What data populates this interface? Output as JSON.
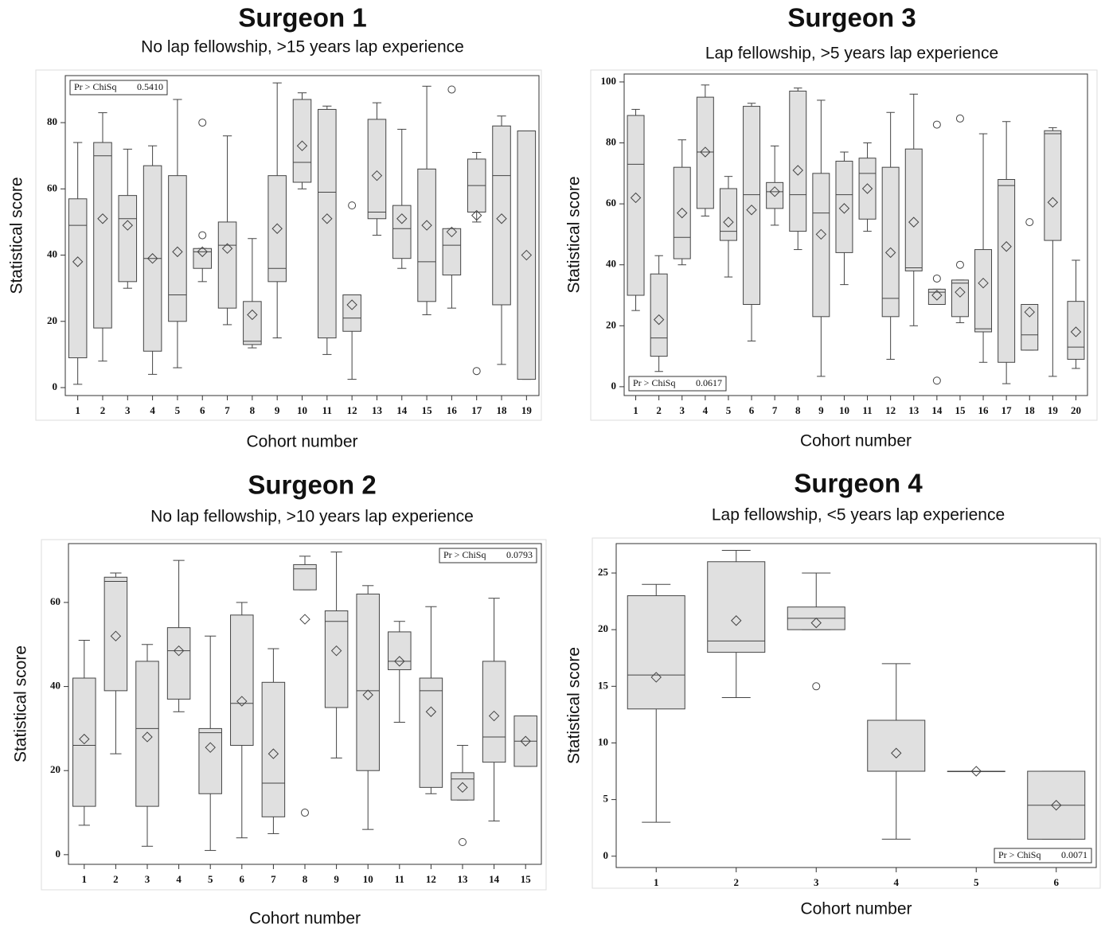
{
  "chart_data": [
    {
      "type": "box",
      "title": "Surgeon 1",
      "subtitle": "No lap fellowship, >15 years lap experience",
      "xlabel": "Cohort number",
      "ylabel": "Statistical score",
      "stat_label": "Pr > ChiSq",
      "p_value": "0.5410",
      "annotation_corner": "top-left",
      "color": "#e0e0e0",
      "ylim": [
        -2.4,
        94.2
      ],
      "yticks": [
        0,
        20,
        40,
        60,
        80
      ],
      "categories": [
        "1",
        "2",
        "3",
        "4",
        "5",
        "6",
        "7",
        "8",
        "9",
        "10",
        "11",
        "12",
        "13",
        "14",
        "15",
        "16",
        "17",
        "18",
        "19"
      ],
      "boxes": [
        {
          "min": 1,
          "q1": 9,
          "median": 49,
          "q3": 57,
          "max": 74,
          "mean": 38
        },
        {
          "min": 8,
          "q1": 18,
          "median": 70,
          "q3": 74,
          "max": 83,
          "mean": 51
        },
        {
          "min": 30,
          "q1": 32,
          "median": 51,
          "q3": 58,
          "max": 72,
          "mean": 49
        },
        {
          "min": 4,
          "q1": 11,
          "median": 39,
          "q3": 67,
          "max": 73,
          "mean": 39
        },
        {
          "min": 6,
          "q1": 20,
          "median": 28,
          "q3": 64,
          "max": 87,
          "mean": 41
        },
        {
          "min": 32,
          "q1": 36,
          "median": 41,
          "q3": 42,
          "max": 42,
          "mean": 41,
          "outliers": [
            80,
            46
          ]
        },
        {
          "min": 19,
          "q1": 24,
          "median": 43,
          "q3": 50,
          "max": 76,
          "mean": 42
        },
        {
          "min": 12,
          "q1": 13,
          "median": 14,
          "q3": 26,
          "max": 45,
          "mean": 22
        },
        {
          "min": 15,
          "q1": 32,
          "median": 36,
          "q3": 64,
          "max": 92,
          "mean": 48
        },
        {
          "min": 60,
          "q1": 62,
          "median": 68,
          "q3": 87,
          "max": 89,
          "mean": 73
        },
        {
          "min": 10,
          "q1": 15,
          "median": 59,
          "q3": 84,
          "max": 85,
          "mean": 51
        },
        {
          "min": 2.5,
          "q1": 17,
          "median": 21,
          "q3": 28,
          "max": 28,
          "mean": 25,
          "outliers": [
            55
          ]
        },
        {
          "min": 46,
          "q1": 51,
          "median": 53,
          "q3": 81,
          "max": 86,
          "mean": 64
        },
        {
          "min": 36,
          "q1": 39,
          "median": 48,
          "q3": 55,
          "max": 78,
          "mean": 51
        },
        {
          "min": 22,
          "q1": 26,
          "median": 38,
          "q3": 66,
          "max": 91,
          "mean": 49
        },
        {
          "min": 24,
          "q1": 34,
          "median": 43,
          "q3": 48,
          "max": 48,
          "mean": 47,
          "outliers": [
            90
          ]
        },
        {
          "min": 50,
          "q1": 53,
          "median": 61,
          "q3": 69,
          "max": 71,
          "mean": 52,
          "outliers": [
            5
          ]
        },
        {
          "min": 7,
          "q1": 25,
          "median": 64,
          "q3": 79,
          "max": 82,
          "mean": 51
        },
        {
          "min": 2.5,
          "q1": 2.5,
          "median": 77.5,
          "q3": 77.5,
          "max": 77.5,
          "mean": 40
        }
      ]
    },
    {
      "type": "box",
      "title": "Surgeon 3",
      "subtitle": "Lap fellowship, >5 years lap experience",
      "xlabel": "Cohort number",
      "ylabel": "Statistical score",
      "stat_label": "Pr > ChiSq",
      "p_value": "0.0617",
      "annotation_corner": "bottom-left",
      "color": "#e0e0e0",
      "ylim": [
        -2.9,
        102.6
      ],
      "yticks": [
        0,
        20,
        40,
        60,
        80,
        100
      ],
      "categories": [
        "1",
        "2",
        "3",
        "4",
        "5",
        "6",
        "7",
        "8",
        "9",
        "10",
        "11",
        "12",
        "13",
        "14",
        "15",
        "16",
        "17",
        "18",
        "19",
        "20"
      ],
      "boxes": [
        {
          "min": 25,
          "q1": 30,
          "median": 73,
          "q3": 89,
          "max": 91,
          "mean": 62
        },
        {
          "min": 5,
          "q1": 10,
          "median": 16,
          "q3": 37,
          "max": 43,
          "mean": 22
        },
        {
          "min": 40,
          "q1": 42,
          "median": 49,
          "q3": 72,
          "max": 81,
          "mean": 57
        },
        {
          "min": 56,
          "q1": 58.5,
          "median": 77,
          "q3": 95,
          "max": 99,
          "mean": 77
        },
        {
          "min": 36,
          "q1": 48,
          "median": 51,
          "q3": 65,
          "max": 69,
          "mean": 54
        },
        {
          "min": 15,
          "q1": 27,
          "median": 63,
          "q3": 92,
          "max": 93,
          "mean": 58
        },
        {
          "min": 53,
          "q1": 58.5,
          "median": 64,
          "q3": 67,
          "max": 79,
          "mean": 64
        },
        {
          "min": 45,
          "q1": 51,
          "median": 63,
          "q3": 97,
          "max": 98,
          "mean": 71
        },
        {
          "min": 3.4,
          "q1": 23,
          "median": 57,
          "q3": 70,
          "max": 94,
          "mean": 50
        },
        {
          "min": 33.5,
          "q1": 44,
          "median": 63,
          "q3": 74,
          "max": 77,
          "mean": 58.5
        },
        {
          "min": 51,
          "q1": 55,
          "median": 70,
          "q3": 75,
          "max": 80,
          "mean": 65
        },
        {
          "min": 9,
          "q1": 23,
          "median": 29,
          "q3": 72,
          "max": 90,
          "mean": 44
        },
        {
          "min": 20,
          "q1": 38,
          "median": 39,
          "q3": 78,
          "max": 96,
          "mean": 54
        },
        {
          "min": 27,
          "q1": 27,
          "median": 31,
          "q3": 32,
          "max": 32,
          "mean": 30,
          "outliers": [
            86,
            35.5,
            2
          ]
        },
        {
          "min": 21,
          "q1": 23,
          "median": 34,
          "q3": 35,
          "max": 35,
          "mean": 31,
          "outliers": [
            88,
            40
          ]
        },
        {
          "min": 8,
          "q1": 18,
          "median": 19,
          "q3": 45,
          "max": 83,
          "mean": 34
        },
        {
          "min": 1,
          "q1": 8,
          "median": 66,
          "q3": 68,
          "max": 87,
          "mean": 46
        },
        {
          "min": 12,
          "q1": 12,
          "median": 17,
          "q3": 27,
          "max": 27,
          "mean": 24.5,
          "outliers": [
            54
          ]
        },
        {
          "min": 3.4,
          "q1": 48,
          "median": 83,
          "q3": 84,
          "max": 85,
          "mean": 60.5
        },
        {
          "min": 6,
          "q1": 9,
          "median": 13,
          "q3": 28,
          "max": 41.5,
          "mean": 18
        }
      ]
    },
    {
      "type": "box",
      "title": "Surgeon 2",
      "subtitle": "No lap fellowship, >10 years lap experience",
      "xlabel": "Cohort number",
      "ylabel": "Statistical score",
      "stat_label": "Pr > ChiSq",
      "p_value": "0.0793",
      "annotation_corner": "top-right",
      "color": "#e0e0e0",
      "ylim": [
        -2.3,
        74
      ],
      "yticks": [
        0,
        20,
        40,
        60
      ],
      "categories": [
        "1",
        "2",
        "3",
        "4",
        "5",
        "6",
        "7",
        "8",
        "9",
        "10",
        "11",
        "12",
        "13",
        "14",
        "15"
      ],
      "boxes": [
        {
          "min": 7,
          "q1": 11.5,
          "median": 26,
          "q3": 42,
          "max": 51,
          "mean": 27.5
        },
        {
          "min": 24,
          "q1": 39,
          "median": 65,
          "q3": 66,
          "max": 67,
          "mean": 52
        },
        {
          "min": 2,
          "q1": 11.5,
          "median": 30,
          "q3": 46,
          "max": 50,
          "mean": 28
        },
        {
          "min": 34,
          "q1": 37,
          "median": 48.5,
          "q3": 54,
          "max": 70,
          "mean": 48.5
        },
        {
          "min": 1,
          "q1": 14.5,
          "median": 29,
          "q3": 30,
          "max": 52,
          "mean": 25.5
        },
        {
          "min": 4,
          "q1": 26,
          "median": 36,
          "q3": 57,
          "max": 60,
          "mean": 36.5
        },
        {
          "min": 5,
          "q1": 9,
          "median": 17,
          "q3": 41,
          "max": 49,
          "mean": 24
        },
        {
          "min": 63,
          "q1": 63,
          "median": 68,
          "q3": 69,
          "max": 71,
          "mean": 56,
          "outliers": [
            10
          ]
        },
        {
          "min": 23,
          "q1": 35,
          "median": 55.5,
          "q3": 58,
          "max": 72,
          "mean": 48.5
        },
        {
          "min": 6,
          "q1": 20,
          "median": 39,
          "q3": 62,
          "max": 64,
          "mean": 38
        },
        {
          "min": 31.5,
          "q1": 44,
          "median": 46,
          "q3": 53,
          "max": 55.5,
          "mean": 46
        },
        {
          "min": 14.5,
          "q1": 16,
          "median": 39,
          "q3": 42,
          "max": 59,
          "mean": 34
        },
        {
          "min": 13,
          "q1": 13,
          "median": 18,
          "q3": 19.5,
          "max": 26,
          "mean": 16,
          "outliers": [
            3
          ]
        },
        {
          "min": 8,
          "q1": 22,
          "median": 28,
          "q3": 46,
          "max": 61,
          "mean": 33
        },
        {
          "min": 21,
          "q1": 21,
          "median": 27,
          "q3": 33,
          "max": 33,
          "mean": 27
        }
      ]
    },
    {
      "type": "box",
      "title": "Surgeon 4",
      "subtitle": "Lap fellowship, <5 years lap experience",
      "xlabel": "Cohort number",
      "ylabel": "Statistical score",
      "stat_label": "Pr > ChiSq",
      "p_value": "0.0071",
      "annotation_corner": "bottom-right",
      "color": "#e0e0e0",
      "ylim": [
        -1,
        27.6
      ],
      "yticks": [
        0,
        5,
        10,
        15,
        20,
        25
      ],
      "categories": [
        "1",
        "2",
        "3",
        "4",
        "5",
        "6"
      ],
      "boxes": [
        {
          "min": 3,
          "q1": 13,
          "median": 16,
          "q3": 23,
          "max": 24,
          "mean": 15.8
        },
        {
          "min": 14,
          "q1": 18,
          "median": 19,
          "q3": 26,
          "max": 27,
          "mean": 20.8
        },
        {
          "min": 20,
          "q1": 20,
          "median": 21,
          "q3": 22,
          "max": 25,
          "mean": 20.6,
          "outliers": [
            15
          ]
        },
        {
          "min": 1.5,
          "q1": 7.5,
          "median": 7.5,
          "q3": 12,
          "max": 17,
          "mean": 9.1
        },
        {
          "min": 7.5,
          "q1": 7.5,
          "median": 7.5,
          "q3": 7.5,
          "max": 7.5,
          "mean": 7.5
        },
        {
          "min": 1.5,
          "q1": 1.5,
          "median": 4.5,
          "q3": 7.5,
          "max": 7.5,
          "mean": 4.5
        }
      ]
    }
  ]
}
